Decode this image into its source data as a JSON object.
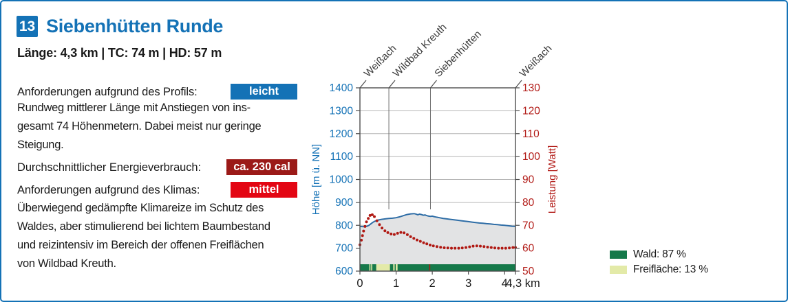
{
  "route": {
    "number": "13",
    "title": "Siebenhütten Runde",
    "stats": "Länge: 4,3 km | TC: 74 m | HD: 57 m"
  },
  "colors": {
    "accent_blue": "#1472b6",
    "dark_red": "#9b1a18",
    "bright_red": "#e30613",
    "text": "#1a1a1a"
  },
  "specs": {
    "rows": [
      {
        "label": "Anforderungen aufgrund des Profils:",
        "badge": "leicht",
        "badge_color": "#1472b6"
      },
      {
        "label": "Durchschnittlicher Energieverbrauch:",
        "badge": "ca. 230 cal",
        "badge_color": "#9b1a18"
      },
      {
        "label": "Anforderungen aufgrund des Klimas:",
        "badge": "mittel",
        "badge_color": "#e30613"
      }
    ]
  },
  "paragraphs": {
    "profile_desc": "Rundweg mittlerer Länge mit Anstiegen von ins-\ngesamt 74 Höhenmetern. Dabei meist nur geringe\nSteigung.",
    "climate_desc": "Überwiegend gedämpfte Klimareize im Schutz des\nWaldes, aber stimulierend bei lichtem Baumbestand\nund reizintensiv im Bereich der offenen Freiflächen\nvon Wildbad Kreuth."
  },
  "chart_data": {
    "type": "line",
    "x_axis": {
      "max_km": 4.3,
      "ticks": [
        0,
        1,
        2,
        3,
        4
      ],
      "end_tick_km": 4.3,
      "end_label": "4,3 km",
      "tick_color": "#1a1a1a"
    },
    "y_left": {
      "label": "Höhe [m ü. NN]",
      "min": 600,
      "max": 1400,
      "step": 100,
      "color": "#1472b6"
    },
    "y_right": {
      "label": "Leistung [Watt]",
      "min": 50,
      "max": 130,
      "step": 10,
      "color": "#b21b17"
    },
    "frame_color": "#4d4d4d",
    "grid_color": "#b5b5b5",
    "waypoint_line_color": "#707070",
    "waypoint_label_color": "#3a3a3a",
    "waypoints": [
      {
        "name": "Weißach",
        "km": 0,
        "guide_line": false
      },
      {
        "name": "Wildbad Kreuth",
        "km": 0.8,
        "guide_line": true
      },
      {
        "name": "Siebenhütten",
        "km": 1.95,
        "guide_line": true
      },
      {
        "name": "Weißach",
        "km": 4.3,
        "guide_line": false
      }
    ],
    "elevation_profile": {
      "name": "Höhe",
      "line_color": "#2e6da6",
      "fill_color": "#e2e3e4",
      "points": [
        [
          0.0,
          795
        ],
        [
          0.1,
          794
        ],
        [
          0.15,
          794
        ],
        [
          0.2,
          796
        ],
        [
          0.25,
          800
        ],
        [
          0.3,
          806
        ],
        [
          0.35,
          812
        ],
        [
          0.4,
          817
        ],
        [
          0.45,
          820
        ],
        [
          0.5,
          823
        ],
        [
          0.6,
          826
        ],
        [
          0.7,
          828
        ],
        [
          0.8,
          830
        ],
        [
          0.9,
          831
        ],
        [
          1.0,
          833
        ],
        [
          1.1,
          837
        ],
        [
          1.2,
          842
        ],
        [
          1.3,
          847
        ],
        [
          1.4,
          850
        ],
        [
          1.5,
          851
        ],
        [
          1.55,
          849
        ],
        [
          1.6,
          846
        ],
        [
          1.65,
          849
        ],
        [
          1.7,
          847
        ],
        [
          1.75,
          844
        ],
        [
          1.8,
          845
        ],
        [
          1.85,
          842
        ],
        [
          1.9,
          840
        ],
        [
          1.95,
          839
        ],
        [
          2.0,
          840
        ],
        [
          2.05,
          838
        ],
        [
          2.1,
          836
        ],
        [
          2.2,
          833
        ],
        [
          2.3,
          830
        ],
        [
          2.4,
          828
        ],
        [
          2.5,
          826
        ],
        [
          2.6,
          824
        ],
        [
          2.7,
          822
        ],
        [
          2.8,
          820
        ],
        [
          2.9,
          818
        ],
        [
          3.0,
          816
        ],
        [
          3.1,
          814
        ],
        [
          3.2,
          812
        ],
        [
          3.3,
          810
        ],
        [
          3.4,
          809
        ],
        [
          3.5,
          807
        ],
        [
          3.6,
          806
        ],
        [
          3.7,
          804
        ],
        [
          3.8,
          803
        ],
        [
          3.9,
          801
        ],
        [
          4.0,
          800
        ],
        [
          4.1,
          798
        ],
        [
          4.2,
          796
        ],
        [
          4.3,
          795
        ]
      ]
    },
    "power_series": {
      "name": "Leistung",
      "color": "#b01812",
      "points": [
        [
          0.0,
          61.5
        ],
        [
          0.04,
          63.5
        ],
        [
          0.07,
          65.5
        ],
        [
          0.1,
          67.5
        ],
        [
          0.14,
          69.5
        ],
        [
          0.18,
          71.5
        ],
        [
          0.23,
          73.0
        ],
        [
          0.28,
          74.3
        ],
        [
          0.34,
          74.6
        ],
        [
          0.4,
          73.8
        ],
        [
          0.47,
          72.0
        ],
        [
          0.54,
          70.3
        ],
        [
          0.61,
          68.8
        ],
        [
          0.69,
          67.6
        ],
        [
          0.77,
          66.8
        ],
        [
          0.86,
          66.2
        ],
        [
          0.95,
          66.0
        ],
        [
          1.04,
          66.5
        ],
        [
          1.13,
          66.9
        ],
        [
          1.22,
          66.7
        ],
        [
          1.31,
          65.9
        ],
        [
          1.4,
          65.0
        ],
        [
          1.49,
          64.3
        ],
        [
          1.58,
          63.6
        ],
        [
          1.67,
          63.0
        ],
        [
          1.76,
          62.4
        ],
        [
          1.85,
          61.9
        ],
        [
          1.94,
          61.4
        ],
        [
          2.03,
          61.0
        ],
        [
          2.13,
          60.7
        ],
        [
          2.23,
          60.4
        ],
        [
          2.33,
          60.2
        ],
        [
          2.43,
          60.1
        ],
        [
          2.53,
          60.0
        ],
        [
          2.63,
          60.0
        ],
        [
          2.73,
          60.0
        ],
        [
          2.83,
          60.1
        ],
        [
          2.93,
          60.3
        ],
        [
          3.03,
          60.6
        ],
        [
          3.13,
          60.9
        ],
        [
          3.23,
          61.0
        ],
        [
          3.33,
          60.9
        ],
        [
          3.43,
          60.7
        ],
        [
          3.53,
          60.5
        ],
        [
          3.63,
          60.3
        ],
        [
          3.73,
          60.1
        ],
        [
          3.83,
          60.0
        ],
        [
          3.93,
          60.0
        ],
        [
          4.03,
          60.0
        ],
        [
          4.13,
          60.1
        ],
        [
          4.23,
          60.3
        ],
        [
          4.3,
          60.3
        ]
      ]
    },
    "surface_bar": {
      "wald_color": "#15794a",
      "freiflaeche_color": "#e3eaa8",
      "marker_color": "#b01812",
      "marker_km": 1.93,
      "freiflaeche_segments": [
        [
          0.26,
          0.29
        ],
        [
          0.31,
          0.34
        ],
        [
          0.45,
          0.83
        ],
        [
          0.92,
          0.96
        ],
        [
          0.99,
          1.04
        ]
      ]
    },
    "legend": [
      {
        "label": "Wald: 87 %",
        "color": "#15794a"
      },
      {
        "label": "Freifläche: 13 %",
        "color": "#e3eaa8"
      }
    ]
  }
}
